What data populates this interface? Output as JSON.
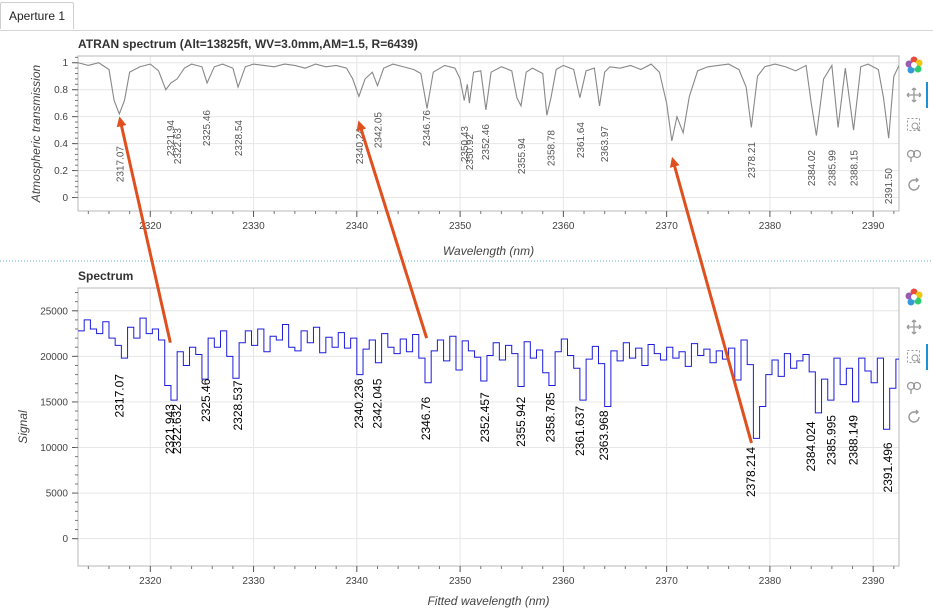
{
  "tab": {
    "label": "Aperture 1"
  },
  "colors": {
    "atran_line": "#888888",
    "spectrum_line": "#1c1cdc",
    "arrow": "#e0501e",
    "grid": "#e6e6e6",
    "frame": "#b8b8b8"
  },
  "toolbar_icons": [
    "bokeh-logo-icon",
    "pan-icon",
    "box-zoom-icon",
    "wheel-zoom-icon",
    "reset-icon"
  ],
  "annotations": {
    "type": "arrows",
    "description": "red arrows linking features in Spectrum to ATRAN lines",
    "arrows": [
      {
        "from_plot": "Spectrum",
        "from_x": 2321.943,
        "from_y": 21500,
        "to_plot": "ATRAN",
        "to_x": 2317.07,
        "to_y": 0.58
      },
      {
        "from_plot": "Spectrum",
        "from_x": 2346.76,
        "from_y": 22000,
        "to_plot": "ATRAN",
        "to_x": 2340.24,
        "to_y": 0.55
      },
      {
        "from_plot": "Spectrum",
        "from_x": 2378.214,
        "from_y": 10500,
        "to_plot": "ATRAN",
        "to_x": 2370.6,
        "to_y": 0.28
      }
    ]
  },
  "chart_data": [
    {
      "type": "line",
      "title": "ATRAN spectrum (Alt=13825ft, WV=3.0mm,AM=1.5, R=6439)",
      "xlabel": "Wavelength (nm)",
      "ylabel": "Atmospheric transmission",
      "xlim": [
        2313,
        2392.5
      ],
      "ylim": [
        -0.1,
        1.05
      ],
      "xticks": [
        2320,
        2330,
        2340,
        2350,
        2360,
        2370,
        2380,
        2390
      ],
      "yticks": [
        0,
        0.2,
        0.4,
        0.6,
        0.8,
        1
      ],
      "ytick_labels": [
        "0",
        "0.2",
        "0.4",
        "0.6",
        "0.8",
        "1"
      ],
      "grid": true,
      "line_labels": [
        {
          "text": "2317.07",
          "x": 2317.07
        },
        {
          "text": "2321.94",
          "x": 2321.94
        },
        {
          "text": "2322.63",
          "x": 2322.63
        },
        {
          "text": "2325.46",
          "x": 2325.46
        },
        {
          "text": "2328.54",
          "x": 2328.54
        },
        {
          "text": "2340.24",
          "x": 2340.24
        },
        {
          "text": "2342.05",
          "x": 2342.05
        },
        {
          "text": "2346.76",
          "x": 2346.76
        },
        {
          "text": "2350.43",
          "x": 2350.43
        },
        {
          "text": "2350.92",
          "x": 2350.92
        },
        {
          "text": "2352.46",
          "x": 2352.46
        },
        {
          "text": "2355.94",
          "x": 2355.94
        },
        {
          "text": "2358.78",
          "x": 2358.78
        },
        {
          "text": "2361.64",
          "x": 2361.64
        },
        {
          "text": "2363.97",
          "x": 2363.97
        },
        {
          "text": "2378.21",
          "x": 2378.21
        },
        {
          "text": "2384.02",
          "x": 2384.02
        },
        {
          "text": "2385.99",
          "x": 2385.99
        },
        {
          "text": "2388.15",
          "x": 2388.15
        },
        {
          "text": "2391.50",
          "x": 2391.5
        }
      ],
      "x": [
        2313.0,
        2314.0,
        2315.0,
        2316.0,
        2316.5,
        2317.0,
        2317.5,
        2318.0,
        2319.0,
        2320.0,
        2320.8,
        2321.5,
        2322.0,
        2322.6,
        2323.3,
        2324.0,
        2325.0,
        2325.5,
        2326.2,
        2327.0,
        2328.0,
        2328.5,
        2329.2,
        2330.0,
        2331.0,
        2332.0,
        2333.0,
        2334.0,
        2335.0,
        2336.0,
        2337.0,
        2338.0,
        2339.0,
        2339.6,
        2340.2,
        2340.8,
        2341.5,
        2342.0,
        2342.6,
        2343.5,
        2344.5,
        2345.5,
        2346.2,
        2346.8,
        2347.4,
        2348.5,
        2349.5,
        2350.0,
        2350.4,
        2350.7,
        2350.9,
        2351.3,
        2352.0,
        2352.5,
        2353.0,
        2354.0,
        2355.0,
        2355.5,
        2355.9,
        2356.4,
        2357.0,
        2358.0,
        2358.4,
        2358.8,
        2359.3,
        2360.0,
        2361.0,
        2361.6,
        2362.2,
        2363.0,
        2363.5,
        2364.0,
        2364.5,
        2365.5,
        2366.5,
        2367.5,
        2368.5,
        2369.3,
        2370.0,
        2370.5,
        2371.0,
        2371.6,
        2372.2,
        2373.0,
        2374.0,
        2375.0,
        2376.0,
        2377.0,
        2377.7,
        2378.2,
        2378.8,
        2379.5,
        2380.5,
        2381.5,
        2382.5,
        2383.5,
        2384.0,
        2384.5,
        2385.2,
        2386.0,
        2386.6,
        2387.3,
        2388.1,
        2388.8,
        2389.5,
        2390.5,
        2391.0,
        2391.5,
        2392.0,
        2392.5
      ],
      "y": [
        1.0,
        0.98,
        1.0,
        0.95,
        0.72,
        0.62,
        0.72,
        0.93,
        0.97,
        0.99,
        0.94,
        0.8,
        0.85,
        0.88,
        0.96,
        0.99,
        0.97,
        0.85,
        0.97,
        0.99,
        0.96,
        0.82,
        0.97,
        0.99,
        0.98,
        0.97,
        0.99,
        0.98,
        0.96,
        0.99,
        0.97,
        0.98,
        0.96,
        0.88,
        0.75,
        0.88,
        0.93,
        0.83,
        0.96,
        0.99,
        0.97,
        0.95,
        0.92,
        0.66,
        0.93,
        0.98,
        0.96,
        0.88,
        0.72,
        0.84,
        0.7,
        0.93,
        0.94,
        0.65,
        0.93,
        0.97,
        0.94,
        0.74,
        0.68,
        0.93,
        0.96,
        0.92,
        0.61,
        0.74,
        0.95,
        0.98,
        0.95,
        0.74,
        0.94,
        0.96,
        0.68,
        0.93,
        0.97,
        0.96,
        0.98,
        0.95,
        0.99,
        0.93,
        0.7,
        0.42,
        0.6,
        0.48,
        0.75,
        0.94,
        0.97,
        0.98,
        0.99,
        0.95,
        0.82,
        0.52,
        0.9,
        0.97,
        0.99,
        0.97,
        0.94,
        0.98,
        0.7,
        0.46,
        0.88,
        0.98,
        0.52,
        0.96,
        0.5,
        0.97,
        0.99,
        0.95,
        0.74,
        0.44,
        0.9,
        0.98
      ]
    },
    {
      "type": "line",
      "title": "Spectrum",
      "xlabel": "Fitted wavelength (nm)",
      "ylabel": "Signal",
      "xlim": [
        2313,
        2392.5
      ],
      "ylim": [
        -3000,
        27500
      ],
      "xticks": [
        2320,
        2330,
        2340,
        2350,
        2360,
        2370,
        2380,
        2390
      ],
      "yticks": [
        0,
        5000,
        10000,
        15000,
        20000,
        25000
      ],
      "ytick_labels": [
        "0",
        "5000",
        "10000",
        "15000",
        "20000",
        "25000"
      ],
      "grid": true,
      "step": true,
      "line_labels": [
        {
          "text": "2317.07",
          "x": 2317.07,
          "y": 18500
        },
        {
          "text": "2321.943",
          "x": 2321.943,
          "y": 15200
        },
        {
          "text": "2322.632",
          "x": 2322.632,
          "y": 15200
        },
        {
          "text": "2325.46",
          "x": 2325.46,
          "y": 18000
        },
        {
          "text": "2328.537",
          "x": 2328.537,
          "y": 17800
        },
        {
          "text": "2340.236",
          "x": 2340.236,
          "y": 18000
        },
        {
          "text": "2342.045",
          "x": 2342.045,
          "y": 18000
        },
        {
          "text": "2346.76",
          "x": 2346.76,
          "y": 16000
        },
        {
          "text": "2352.457",
          "x": 2352.457,
          "y": 16500
        },
        {
          "text": "2355.942",
          "x": 2355.942,
          "y": 16000
        },
        {
          "text": "2358.785",
          "x": 2358.785,
          "y": 16500
        },
        {
          "text": "2361.637",
          "x": 2361.637,
          "y": 15000
        },
        {
          "text": "2363.968",
          "x": 2363.968,
          "y": 14500
        },
        {
          "text": "2378.214",
          "x": 2378.214,
          "y": 10500
        },
        {
          "text": "2384.024",
          "x": 2384.024,
          "y": 13300
        },
        {
          "text": "2385.995",
          "x": 2385.995,
          "y": 14000
        },
        {
          "text": "2388.149",
          "x": 2388.149,
          "y": 14000
        },
        {
          "text": "2391.496",
          "x": 2391.496,
          "y": 11000
        }
      ],
      "x": [
        2313.0,
        2313.6,
        2314.2,
        2314.8,
        2315.4,
        2316.0,
        2316.6,
        2317.2,
        2317.8,
        2318.4,
        2319.0,
        2319.6,
        2320.2,
        2320.8,
        2321.4,
        2322.0,
        2322.6,
        2323.2,
        2323.8,
        2324.4,
        2325.0,
        2325.6,
        2326.2,
        2326.8,
        2327.4,
        2328.0,
        2328.6,
        2329.2,
        2329.8,
        2330.4,
        2331.0,
        2331.6,
        2332.2,
        2332.8,
        2333.4,
        2334.0,
        2334.6,
        2335.2,
        2335.8,
        2336.4,
        2337.0,
        2337.6,
        2338.2,
        2338.8,
        2339.4,
        2340.0,
        2340.6,
        2341.2,
        2341.8,
        2342.4,
        2343.0,
        2343.6,
        2344.2,
        2344.8,
        2345.4,
        2346.0,
        2346.6,
        2347.2,
        2347.8,
        2348.4,
        2349.0,
        2349.6,
        2350.2,
        2350.8,
        2351.4,
        2352.0,
        2352.6,
        2353.2,
        2353.8,
        2354.4,
        2355.0,
        2355.6,
        2356.2,
        2356.8,
        2357.4,
        2358.0,
        2358.6,
        2359.2,
        2359.8,
        2360.4,
        2361.0,
        2361.6,
        2362.2,
        2362.8,
        2363.4,
        2364.0,
        2364.6,
        2365.2,
        2365.8,
        2366.4,
        2367.0,
        2367.6,
        2368.2,
        2368.8,
        2369.4,
        2370.0,
        2370.6,
        2371.2,
        2371.8,
        2372.4,
        2373.0,
        2373.6,
        2374.2,
        2374.8,
        2375.4,
        2376.0,
        2376.6,
        2377.2,
        2377.8,
        2378.4,
        2379.0,
        2379.6,
        2380.2,
        2380.8,
        2381.4,
        2382.0,
        2382.6,
        2383.2,
        2383.8,
        2384.4,
        2385.0,
        2385.6,
        2386.2,
        2386.8,
        2387.4,
        2388.0,
        2388.6,
        2389.2,
        2389.8,
        2390.4,
        2391.0,
        2391.6,
        2392.2
      ],
      "y": [
        22800,
        24000,
        23000,
        22500,
        23800,
        22000,
        21200,
        19800,
        23200,
        22000,
        24200,
        22500,
        23000,
        21800,
        16800,
        15200,
        20500,
        19000,
        21000,
        20200,
        17500,
        22000,
        21000,
        22800,
        20000,
        17600,
        21500,
        22800,
        21200,
        23000,
        20500,
        22200,
        21800,
        23500,
        21000,
        20600,
        22800,
        21500,
        23200,
        20400,
        22100,
        21000,
        22600,
        20900,
        22000,
        18000,
        20800,
        21800,
        19300,
        22500,
        21000,
        20300,
        21900,
        20500,
        22400,
        19800,
        17100,
        20600,
        21800,
        19500,
        22200,
        18500,
        21700,
        20600,
        19900,
        17300,
        20100,
        21500,
        19600,
        21200,
        20300,
        16700,
        21600,
        19800,
        20700,
        18200,
        16800,
        20500,
        21900,
        20100,
        18700,
        15200,
        19700,
        21100,
        19200,
        14500,
        20600,
        19500,
        21500,
        19800,
        20900,
        19000,
        21300,
        20300,
        19600,
        21000,
        19800,
        20500,
        18900,
        21400,
        20100,
        20800,
        19300,
        20600,
        19700,
        20900,
        17400,
        21800,
        19100,
        11000,
        14500,
        18000,
        19600,
        17800,
        20300,
        18700,
        19500,
        20200,
        18300,
        13800,
        17500,
        15200,
        19800,
        16900,
        18700,
        15000,
        19800,
        18400,
        17100,
        19800,
        12000,
        16500,
        19700
      ]
    }
  ]
}
